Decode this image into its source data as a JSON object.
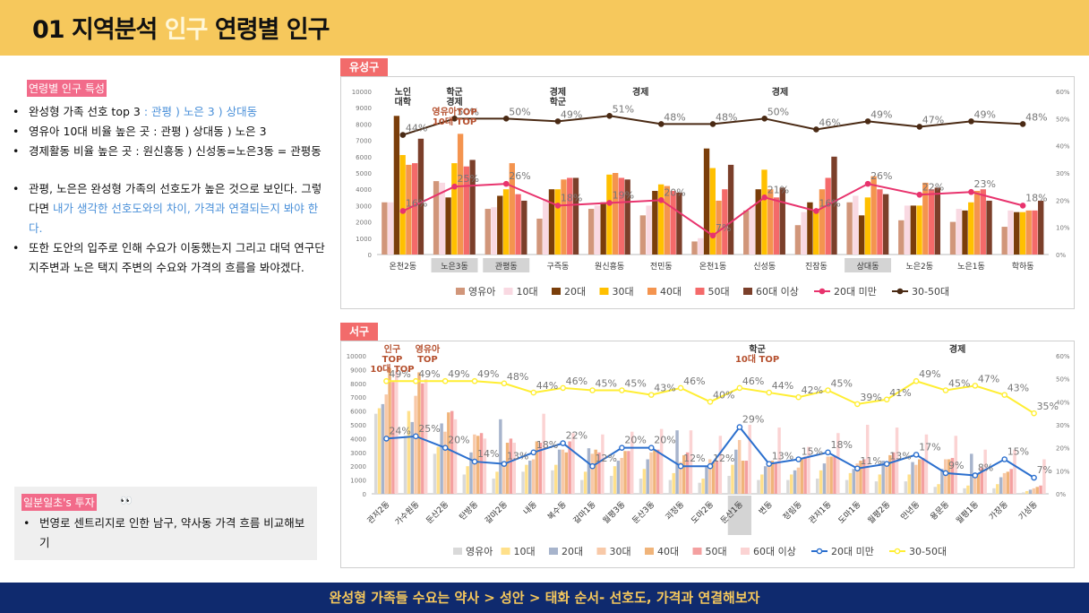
{
  "header": {
    "title_num": "01",
    "title_a": "지역분석",
    "title_hl": "인구",
    "title_b": "연령별 인구"
  },
  "left": {
    "tag": "연령별 인구 특성",
    "b1_a": "완성형 가족 선호 top 3",
    "b1_b": ": 관평 ) 노은 3 ) 상대동",
    "b2": "영유아 10대 비율 높은 곳 : 관평 ) 상대동 ) 노은 3",
    "b3": "경제활동 비율 높은 곳 : 원신흥동 ) 신성동=노은3동 = 관평동",
    "b4_a": "관평, 노은은 완성형 가족의 선호도가 높은 것으로 보인다. 그렇다면 ",
    "b4_b": "내가 생각한 선호도와의 차이, 가격과 연결되는지 봐야 한다.",
    "b5": "또한 도안의 입주로 인해 수요가 이동했는지 그리고 대덕 연구단지주변과 노은 택지 주변의 수요와 가격의 흐름을 봐야겠다.",
    "tip_tag": "일분일초's 투자",
    "tip_eyes": "👀",
    "tip_text": "번영로 센트리지로 인한 남구, 약사동 가격 흐름 비교해보기"
  },
  "footer": {
    "text": "완성형 가족들 수요는 약사 > 성안 > 태화 순서- 선호도, 가격과 연결해보자"
  },
  "colors": {
    "yuseong": [
      "#d1967a",
      "#f9d9e2",
      "#7a3e0a",
      "#ffc000",
      "#f4944f",
      "#f46a6a",
      "#7b3f2a"
    ],
    "seogu": [
      "#d9d9d9",
      "#ffe08a",
      "#a7b4cc",
      "#f8c9a8",
      "#f0b47a",
      "#f4a0a0",
      "#fbd3d3"
    ],
    "line_u20_yuseong": "#e8336d",
    "line_30_50_yuseong": "#4a2a14",
    "line_u20_seogu": "#2b6fce",
    "line_30_50_seogu": "#ffee33"
  },
  "chart_data": [
    {
      "type": "bar",
      "tab": "유성구",
      "categories": [
        "온천2동",
        "노은3동",
        "관평동",
        "구즉동",
        "원신흥동",
        "전민동",
        "온천1동",
        "신성동",
        "진잠동",
        "상대동",
        "노은2동",
        "노은1동",
        "학하동"
      ],
      "highlighted": [
        "노은3동",
        "관평동",
        "상대동"
      ],
      "series": [
        {
          "name": "영유아",
          "values": [
            3200,
            4500,
            2800,
            2200,
            2800,
            2400,
            800,
            2700,
            1800,
            3200,
            2100,
            2000,
            1700
          ]
        },
        {
          "name": "10대",
          "values": [
            3200,
            4400,
            2900,
            3400,
            3000,
            3000,
            1000,
            3000,
            2600,
            3600,
            3000,
            2800,
            2700
          ]
        },
        {
          "name": "20대",
          "values": [
            8500,
            3500,
            3600,
            4000,
            3200,
            3900,
            6500,
            4000,
            3200,
            2400,
            3000,
            2700,
            2600
          ]
        },
        {
          "name": "30대",
          "values": [
            6100,
            5600,
            4000,
            4000,
            4900,
            4300,
            5300,
            5200,
            2600,
            3500,
            3000,
            3200,
            2600
          ]
        },
        {
          "name": "40대",
          "values": [
            5500,
            7400,
            5600,
            4600,
            5000,
            4200,
            3300,
            4000,
            4000,
            4800,
            4400,
            3900,
            2700
          ]
        },
        {
          "name": "50대",
          "values": [
            5600,
            5400,
            3700,
            4700,
            4700,
            3900,
            4000,
            3500,
            4700,
            4000,
            4000,
            4000,
            2700
          ]
        },
        {
          "name": "60대 이상",
          "values": [
            7100,
            5800,
            3300,
            4700,
            4600,
            3800,
            5500,
            4100,
            6000,
            3700,
            4100,
            3300,
            3300
          ]
        }
      ],
      "lines": [
        {
          "name": "20대 미만",
          "values": [
            16,
            25,
            26,
            18,
            19,
            20,
            7,
            21,
            16,
            26,
            22,
            23,
            18
          ],
          "labels": [
            "16%",
            "25%",
            "26%",
            "18%",
            "19%",
            "20%",
            "7%",
            "21%",
            "16%",
            "26%",
            "22%",
            "23%",
            "18%"
          ]
        },
        {
          "name": "30-50대",
          "values": [
            44,
            50,
            50,
            49,
            51,
            48,
            48,
            50,
            46,
            49,
            47,
            49,
            48
          ],
          "labels": [
            "44%",
            "50%",
            "50%",
            "49%",
            "51%",
            "48%",
            "48%",
            "50%",
            "46%",
            "49%",
            "47%",
            "49%",
            "48%"
          ]
        }
      ],
      "ylim": [
        0,
        10000
      ],
      "yticks": [
        "0",
        "1000",
        "2000",
        "3000",
        "4000",
        "5000",
        "6000",
        "7000",
        "8000",
        "9000",
        "10000"
      ],
      "y2ticks": [
        "0%",
        "10%",
        "20%",
        "30%",
        "40%",
        "50%",
        "60%"
      ],
      "annotations": [
        {
          "cat": 0,
          "lines": [
            "노인",
            "대학"
          ],
          "color": "#333333"
        },
        {
          "cat": 1,
          "lines": [
            "학군",
            "경제",
            "영유아TOP",
            "10대 TOP"
          ],
          "colors": [
            "#333333",
            "#333333",
            "#b5502e",
            "#b5502e"
          ]
        },
        {
          "cat": 3,
          "lines": [
            "경제",
            "학군"
          ],
          "color": "#333333"
        },
        {
          "cat": 4.6,
          "lines": [
            "경제"
          ],
          "color": "#333333"
        },
        {
          "cat": 7.3,
          "lines": [
            "경제"
          ],
          "color": "#333333"
        }
      ]
    },
    {
      "type": "bar",
      "tab": "서구",
      "categories": [
        "관저2동",
        "가수원동",
        "둔산2동",
        "탄방동",
        "갈마2동",
        "내동",
        "복수동",
        "갈마1동",
        "월평3동",
        "둔산3동",
        "괴정동",
        "도마2동",
        "둔산1동",
        "변동",
        "정림동",
        "관저1동",
        "도마1동",
        "월평2동",
        "만년동",
        "용문동",
        "월평1동",
        "가장동",
        "기성동"
      ],
      "highlighted": [
        "둔산1동"
      ],
      "series": [
        {
          "name": "영유아",
          "values": [
            5800,
            4200,
            2900,
            1400,
            1100,
            1600,
            1700,
            1000,
            1300,
            1100,
            1000,
            800,
            1300,
            1000,
            1000,
            1100,
            1000,
            900,
            900,
            500,
            400,
            400,
            100
          ]
        },
        {
          "name": "10대",
          "values": [
            6200,
            6000,
            3400,
            2000,
            1600,
            2100,
            2100,
            1600,
            2000,
            1800,
            1500,
            1100,
            2100,
            1400,
            1400,
            1700,
            1500,
            1400,
            1400,
            700,
            600,
            700,
            200
          ]
        },
        {
          "name": "20대",
          "values": [
            6500,
            5200,
            5100,
            3000,
            5400,
            2400,
            3200,
            3300,
            2400,
            2500,
            4600,
            2000,
            3200,
            2000,
            1700,
            2200,
            1800,
            2400,
            2300,
            1800,
            2900,
            1200,
            300
          ]
        },
        {
          "name": "30대",
          "values": [
            7200,
            7100,
            4500,
            4300,
            2000,
            2500,
            3200,
            2900,
            2600,
            3000,
            2300,
            2500,
            3900,
            2100,
            1900,
            2700,
            2200,
            2200,
            2100,
            2500,
            1300,
            1500,
            400
          ]
        },
        {
          "name": "40대",
          "values": [
            9100,
            8800,
            5900,
            4200,
            3700,
            3800,
            3000,
            3200,
            3100,
            3200,
            2800,
            2300,
            2400,
            2400,
            2500,
            2700,
            2400,
            2800,
            2500,
            2500,
            1500,
            1600,
            500
          ]
        },
        {
          "name": "50대",
          "values": [
            8100,
            8000,
            6000,
            4400,
            4000,
            3700,
            3800,
            3000,
            3100,
            3200,
            3000,
            2400,
            2400,
            2200,
            2700,
            2700,
            2500,
            3000,
            2600,
            2600,
            1900,
            1800,
            600
          ]
        },
        {
          "name": "60대 이상",
          "values": [
            8900,
            8300,
            5400,
            4000,
            3700,
            5800,
            4400,
            4300,
            4500,
            4700,
            4600,
            4200,
            5000,
            4800,
            3400,
            4400,
            5000,
            4800,
            4300,
            4200,
            3200,
            3200,
            2500
          ]
        }
      ],
      "lines": [
        {
          "name": "20대 미만",
          "values": [
            24,
            25,
            20,
            14,
            13,
            18,
            22,
            12,
            20,
            20,
            12,
            12,
            29,
            13,
            15,
            18,
            11,
            13,
            17,
            9,
            8,
            15,
            7
          ],
          "labels": [
            "24%",
            "25%",
            "20%",
            "14%",
            "13%",
            "18%",
            "22%",
            "12%",
            "20%",
            "20%",
            "12%",
            "12%",
            "29%",
            "13%",
            "15%",
            "18%",
            "11%",
            "13%",
            "17%",
            "9%",
            "8%",
            "15%",
            "7%"
          ]
        },
        {
          "name": "30-50대",
          "values": [
            49,
            49,
            49,
            49,
            48,
            44,
            46,
            45,
            45,
            43,
            46,
            40,
            46,
            44,
            42,
            45,
            39,
            41,
            49,
            45,
            47,
            43,
            35
          ],
          "labels": [
            "49%",
            "49%",
            "49%",
            "49%",
            "48%",
            "44%",
            "46%",
            "45%",
            "45%",
            "43%",
            "46%",
            "40%",
            "46%",
            "44%",
            "42%",
            "45%",
            "39%",
            "41%",
            "49%",
            "45%",
            "47%",
            "43%",
            "35%"
          ]
        }
      ],
      "ylim": [
        0,
        10000
      ],
      "yticks": [
        "0",
        "1000",
        "2000",
        "3000",
        "4000",
        "5000",
        "6000",
        "7000",
        "8000",
        "9000",
        "10000"
      ],
      "y2ticks": [
        "0%",
        "10%",
        "20%",
        "30%",
        "40%",
        "50%",
        "60%"
      ],
      "annotations": [
        {
          "cat": 0.2,
          "lines": [
            "인구",
            "TOP",
            "10대 TOP"
          ],
          "colors": [
            "#b5502e",
            "#b5502e",
            "#b5502e"
          ]
        },
        {
          "cat": 1.4,
          "lines": [
            "영유아",
            "TOP"
          ],
          "colors": [
            "#b5502e",
            "#b5502e"
          ]
        },
        {
          "cat": 12.6,
          "lines": [
            "학군",
            "10대 TOP"
          ],
          "colors": [
            "#333333",
            "#b5502e"
          ]
        },
        {
          "cat": 19.4,
          "lines": [
            "경제"
          ],
          "color": "#333333"
        }
      ]
    }
  ]
}
